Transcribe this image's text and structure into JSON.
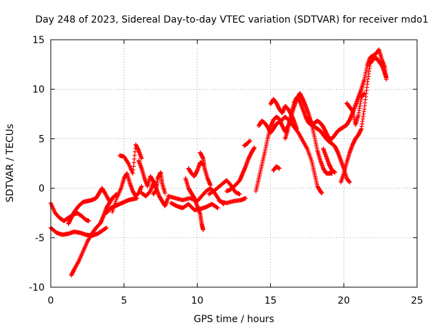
{
  "chart_data": {
    "type": "scatter",
    "title": "Day 248 of 2023, Sidereal Day-to-day VTEC variation (SDTVAR) for receiver mdo1",
    "xlabel": "GPS time / hours",
    "ylabel": "SDTVAR / TECUs",
    "xlim": [
      0,
      25
    ],
    "ylim": [
      -10,
      15
    ],
    "xticks": [
      "0",
      "5",
      "10",
      "15",
      "20",
      "25"
    ],
    "yticks": [
      "-10",
      "-5",
      "0",
      "5",
      "10",
      "15"
    ],
    "grid": true,
    "marker": "plus",
    "color": "#ff0000",
    "series": [
      {
        "points": [
          [
            0,
            -1.5
          ],
          [
            0.3,
            -2.5
          ],
          [
            0.6,
            -3.0
          ],
          [
            0.9,
            -3.3
          ],
          [
            1.2,
            -3.0
          ],
          [
            1.5,
            -2.7
          ],
          [
            1.8,
            -2.5
          ],
          [
            2.1,
            -2.8
          ],
          [
            2.4,
            -3.2
          ],
          [
            2.6,
            -3.3
          ]
        ]
      },
      {
        "points": [
          [
            0,
            -4.0
          ],
          [
            0.4,
            -4.5
          ],
          [
            0.8,
            -4.7
          ],
          [
            1.2,
            -4.6
          ],
          [
            1.6,
            -4.4
          ],
          [
            2.0,
            -4.5
          ],
          [
            2.4,
            -4.7
          ],
          [
            2.8,
            -4.8
          ],
          [
            3.2,
            -4.6
          ],
          [
            3.5,
            -4.3
          ],
          [
            3.8,
            -4.0
          ]
        ]
      },
      {
        "points": [
          [
            1.4,
            -8.8
          ],
          [
            1.6,
            -8.2
          ],
          [
            1.9,
            -7.4
          ],
          [
            2.2,
            -6.4
          ],
          [
            2.5,
            -5.4
          ],
          [
            2.8,
            -4.6
          ],
          [
            3.1,
            -4.0
          ],
          [
            3.4,
            -3.5
          ],
          [
            3.6,
            -2.8
          ],
          [
            3.8,
            -2.0
          ],
          [
            4.0,
            -1.5
          ],
          [
            4.2,
            -1.0
          ],
          [
            4.5,
            -0.6
          ]
        ]
      },
      {
        "points": [
          [
            1.2,
            -3.6
          ],
          [
            1.4,
            -3.0
          ],
          [
            1.6,
            -2.4
          ],
          [
            1.9,
            -1.8
          ],
          [
            2.2,
            -1.4
          ],
          [
            2.5,
            -1.3
          ],
          [
            2.8,
            -1.2
          ],
          [
            3.1,
            -1.0
          ],
          [
            3.3,
            -0.5
          ],
          [
            3.5,
            0
          ],
          [
            3.7,
            -0.5
          ],
          [
            4.0,
            -1.3
          ]
        ]
      },
      {
        "points": [
          [
            3.8,
            -2.5
          ],
          [
            4.1,
            -2.0
          ],
          [
            4.4,
            -1.8
          ],
          [
            4.7,
            -1.6
          ],
          [
            5.0,
            -1.4
          ],
          [
            5.3,
            -1.2
          ],
          [
            5.6,
            -1.1
          ],
          [
            5.9,
            -1.0
          ]
        ]
      },
      {
        "points": [
          [
            4.2,
            -2.4
          ],
          [
            4.5,
            -1.0
          ],
          [
            4.8,
            0
          ],
          [
            5.0,
            1.0
          ],
          [
            5.2,
            1.5
          ],
          [
            5.4,
            0.5
          ],
          [
            5.6,
            -0.3
          ],
          [
            5.8,
            -0.8
          ],
          [
            6.0,
            -0.5
          ],
          [
            6.2,
            0.2
          ]
        ]
      },
      {
        "points": [
          [
            4.7,
            3.3
          ],
          [
            5.0,
            3.2
          ],
          [
            5.3,
            2.5
          ],
          [
            5.6,
            1.5
          ],
          [
            5.8,
            4.4
          ],
          [
            6.0,
            3.8
          ],
          [
            6.2,
            3.0
          ]
        ]
      },
      {
        "points": [
          [
            6.2,
            -0.5
          ],
          [
            6.5,
            -0.8
          ],
          [
            6.8,
            -0.3
          ],
          [
            7.0,
            0.5
          ],
          [
            7.2,
            0
          ],
          [
            7.4,
            -0.8
          ],
          [
            7.6,
            -1.3
          ],
          [
            7.8,
            -1.8
          ],
          [
            8.0,
            -1.0
          ]
        ]
      },
      {
        "points": [
          [
            6.0,
            2.8
          ],
          [
            6.2,
            2.0
          ],
          [
            6.4,
            1.0
          ],
          [
            6.6,
            0.2
          ],
          [
            6.8,
            1.2
          ],
          [
            7.0,
            0.7
          ],
          [
            7.2,
            0.3
          ]
        ]
      },
      {
        "points": [
          [
            7.0,
            -0.6
          ],
          [
            7.2,
            -0.2
          ],
          [
            7.3,
            1.0
          ],
          [
            7.5,
            1.6
          ],
          [
            7.6,
            0.5
          ],
          [
            7.8,
            -0.5
          ]
        ]
      },
      {
        "points": [
          [
            8.0,
            -0.8
          ],
          [
            8.5,
            -1.0
          ],
          [
            9.0,
            -1.2
          ],
          [
            9.5,
            -1.0
          ],
          [
            10.0,
            -1.3
          ],
          [
            10.3,
            -0.8
          ],
          [
            10.6,
            -0.3
          ],
          [
            10.9,
            0
          ],
          [
            11.2,
            -0.5
          ],
          [
            11.5,
            -1.2
          ],
          [
            11.8,
            -1.6
          ]
        ]
      },
      {
        "points": [
          [
            8.2,
            -1.5
          ],
          [
            8.6,
            -1.8
          ],
          [
            9.0,
            -2.0
          ],
          [
            9.4,
            -1.6
          ],
          [
            9.8,
            -2.2
          ],
          [
            10.2,
            -2.1
          ],
          [
            10.6,
            -1.9
          ],
          [
            11.0,
            -1.6
          ],
          [
            11.4,
            -2.0
          ]
        ]
      },
      {
        "points": [
          [
            9.2,
            1.0
          ],
          [
            9.4,
            0
          ],
          [
            9.6,
            -0.5
          ],
          [
            9.8,
            -1.0
          ],
          [
            10.0,
            -1.8
          ],
          [
            10.2,
            -2.6
          ],
          [
            10.3,
            -3.6
          ],
          [
            10.4,
            -4.2
          ]
        ]
      },
      {
        "points": [
          [
            9.4,
            2.0
          ],
          [
            9.6,
            1.5
          ],
          [
            9.8,
            1.2
          ],
          [
            10.0,
            1.8
          ],
          [
            10.2,
            2.6
          ],
          [
            10.4,
            2.4
          ]
        ]
      },
      {
        "points": [
          [
            10.2,
            3.6
          ],
          [
            10.4,
            3.0
          ],
          [
            10.5,
            2.0
          ],
          [
            10.7,
            1.0
          ],
          [
            10.9,
            0.3
          ]
        ]
      },
      {
        "points": [
          [
            10.8,
            -0.6
          ],
          [
            11.2,
            -0.2
          ],
          [
            11.6,
            0.3
          ],
          [
            12.0,
            0.8
          ],
          [
            12.3,
            0.3
          ],
          [
            12.6,
            -0.4
          ],
          [
            12.9,
            -0.6
          ]
        ]
      },
      {
        "points": [
          [
            11.5,
            -1.3
          ],
          [
            12.0,
            -1.5
          ],
          [
            12.5,
            -1.3
          ],
          [
            13.0,
            -1.2
          ],
          [
            13.3,
            -1.0
          ]
        ]
      },
      {
        "points": [
          [
            12.0,
            -0.3
          ],
          [
            12.3,
            -0.1
          ],
          [
            12.6,
            0.3
          ],
          [
            12.9,
            0.8
          ],
          [
            13.1,
            1.5
          ],
          [
            13.3,
            2.2
          ],
          [
            13.5,
            3.0
          ],
          [
            13.7,
            3.6
          ],
          [
            13.9,
            4.1
          ]
        ]
      },
      {
        "points": [
          [
            13.2,
            4.3
          ],
          [
            13.4,
            4.5
          ],
          [
            13.6,
            4.8
          ]
        ]
      },
      {
        "points": [
          [
            14.0,
            -0.3
          ],
          [
            14.2,
            1.0
          ],
          [
            14.4,
            2.3
          ],
          [
            14.6,
            3.6
          ],
          [
            14.8,
            5.0
          ],
          [
            15.0,
            6.2
          ],
          [
            15.2,
            6.9
          ],
          [
            15.4,
            7.2
          ],
          [
            15.6,
            7.0
          ],
          [
            15.8,
            6.3
          ],
          [
            16.0,
            5.7
          ],
          [
            16.2,
            6.3
          ],
          [
            16.4,
            7.2
          ],
          [
            16.6,
            8.2
          ],
          [
            16.8,
            9.0
          ],
          [
            17.0,
            9.6
          ],
          [
            17.2,
            9.0
          ],
          [
            17.4,
            8.3
          ],
          [
            17.6,
            7.5
          ],
          [
            17.8,
            6.5
          ],
          [
            18.0,
            5.2
          ],
          [
            18.2,
            3.8
          ],
          [
            18.4,
            2.8
          ],
          [
            18.6,
            2.0
          ],
          [
            18.8,
            1.5
          ],
          [
            19.0,
            1.5
          ],
          [
            19.2,
            1.5
          ]
        ]
      },
      {
        "points": [
          [
            14.2,
            6.3
          ],
          [
            14.4,
            6.8
          ],
          [
            14.6,
            6.6
          ],
          [
            14.8,
            6.2
          ],
          [
            15.0,
            5.6
          ],
          [
            15.2,
            6.0
          ],
          [
            15.4,
            6.5
          ],
          [
            15.7,
            6.8
          ],
          [
            16.0,
            7.2
          ],
          [
            16.3,
            6.8
          ],
          [
            16.6,
            6.2
          ],
          [
            16.9,
            5.6
          ],
          [
            17.2,
            4.8
          ],
          [
            17.5,
            4.0
          ],
          [
            17.8,
            2.8
          ],
          [
            18.0,
            1.5
          ],
          [
            18.2,
            0.2
          ],
          [
            18.4,
            -0.3
          ],
          [
            18.5,
            -0.5
          ]
        ]
      },
      {
        "points": [
          [
            15.0,
            8.5
          ],
          [
            15.2,
            9.0
          ],
          [
            15.4,
            8.6
          ],
          [
            15.6,
            8.0
          ],
          [
            15.8,
            7.6
          ],
          [
            16.0,
            8.3
          ],
          [
            16.2,
            8.0
          ],
          [
            16.4,
            7.5
          ],
          [
            16.6,
            6.8
          ],
          [
            16.8,
            6.0
          ]
        ]
      },
      {
        "points": [
          [
            15.2,
            1.8
          ],
          [
            15.4,
            2.2
          ],
          [
            15.6,
            2.0
          ]
        ]
      },
      {
        "points": [
          [
            16.0,
            5.0
          ],
          [
            16.2,
            6.0
          ],
          [
            16.4,
            7.4
          ],
          [
            16.6,
            8.6
          ],
          [
            16.8,
            9.2
          ],
          [
            17.0,
            8.8
          ],
          [
            17.2,
            8.0
          ],
          [
            17.4,
            7.2
          ],
          [
            17.6,
            6.6
          ],
          [
            17.8,
            6.4
          ],
          [
            18.0,
            6.6
          ],
          [
            18.2,
            6.8
          ],
          [
            18.4,
            6.6
          ],
          [
            18.6,
            6.2
          ],
          [
            18.8,
            5.6
          ],
          [
            19.0,
            5.0
          ],
          [
            19.2,
            5.0
          ],
          [
            19.4,
            5.4
          ],
          [
            19.6,
            5.8
          ],
          [
            19.8,
            6.0
          ],
          [
            20.0,
            6.2
          ],
          [
            20.2,
            6.4
          ],
          [
            20.4,
            6.9
          ],
          [
            20.6,
            7.6
          ],
          [
            20.8,
            8.4
          ],
          [
            21.0,
            9.2
          ],
          [
            21.2,
            10.0
          ],
          [
            21.4,
            11.0
          ],
          [
            21.6,
            12.4
          ],
          [
            21.8,
            13.2
          ],
          [
            22.0,
            13.4
          ],
          [
            22.2,
            13.6
          ],
          [
            22.4,
            14.0
          ],
          [
            22.6,
            13.0
          ],
          [
            22.8,
            12.2
          ],
          [
            22.9,
            11.0
          ]
        ]
      },
      {
        "points": [
          [
            17.6,
            7.2
          ],
          [
            17.8,
            6.6
          ],
          [
            18.0,
            6.2
          ],
          [
            18.2,
            6.0
          ],
          [
            18.4,
            5.8
          ],
          [
            18.6,
            5.4
          ],
          [
            18.8,
            5.0
          ],
          [
            19.0,
            4.7
          ],
          [
            19.2,
            4.5
          ],
          [
            19.4,
            4.2
          ],
          [
            19.6,
            3.6
          ],
          [
            19.8,
            2.8
          ],
          [
            20.0,
            2.0
          ],
          [
            20.2,
            1.0
          ],
          [
            20.4,
            0.6
          ]
        ]
      },
      {
        "points": [
          [
            19.8,
            0.6
          ],
          [
            20.0,
            1.5
          ],
          [
            20.2,
            2.6
          ],
          [
            20.4,
            3.6
          ],
          [
            20.6,
            4.4
          ],
          [
            20.8,
            5.0
          ],
          [
            21.0,
            5.4
          ],
          [
            21.2,
            6.0
          ],
          [
            21.4,
            8.0
          ],
          [
            21.6,
            10.5
          ],
          [
            21.8,
            12.6
          ],
          [
            22.0,
            13.0
          ],
          [
            22.2,
            13.2
          ],
          [
            22.4,
            12.8
          ],
          [
            22.6,
            12.4
          ],
          [
            22.8,
            11.6
          ],
          [
            22.9,
            11.2
          ]
        ]
      },
      {
        "points": [
          [
            18.6,
            4.0
          ],
          [
            18.8,
            3.2
          ],
          [
            19.0,
            2.4
          ],
          [
            19.2,
            1.8
          ],
          [
            19.4,
            1.6
          ]
        ]
      },
      {
        "points": [
          [
            20.2,
            8.6
          ],
          [
            20.4,
            8.2
          ],
          [
            20.6,
            7.8
          ],
          [
            20.8,
            6.4
          ],
          [
            21.0,
            7.4
          ],
          [
            21.2,
            9.2
          ],
          [
            21.4,
            9.6
          ]
        ]
      }
    ]
  }
}
